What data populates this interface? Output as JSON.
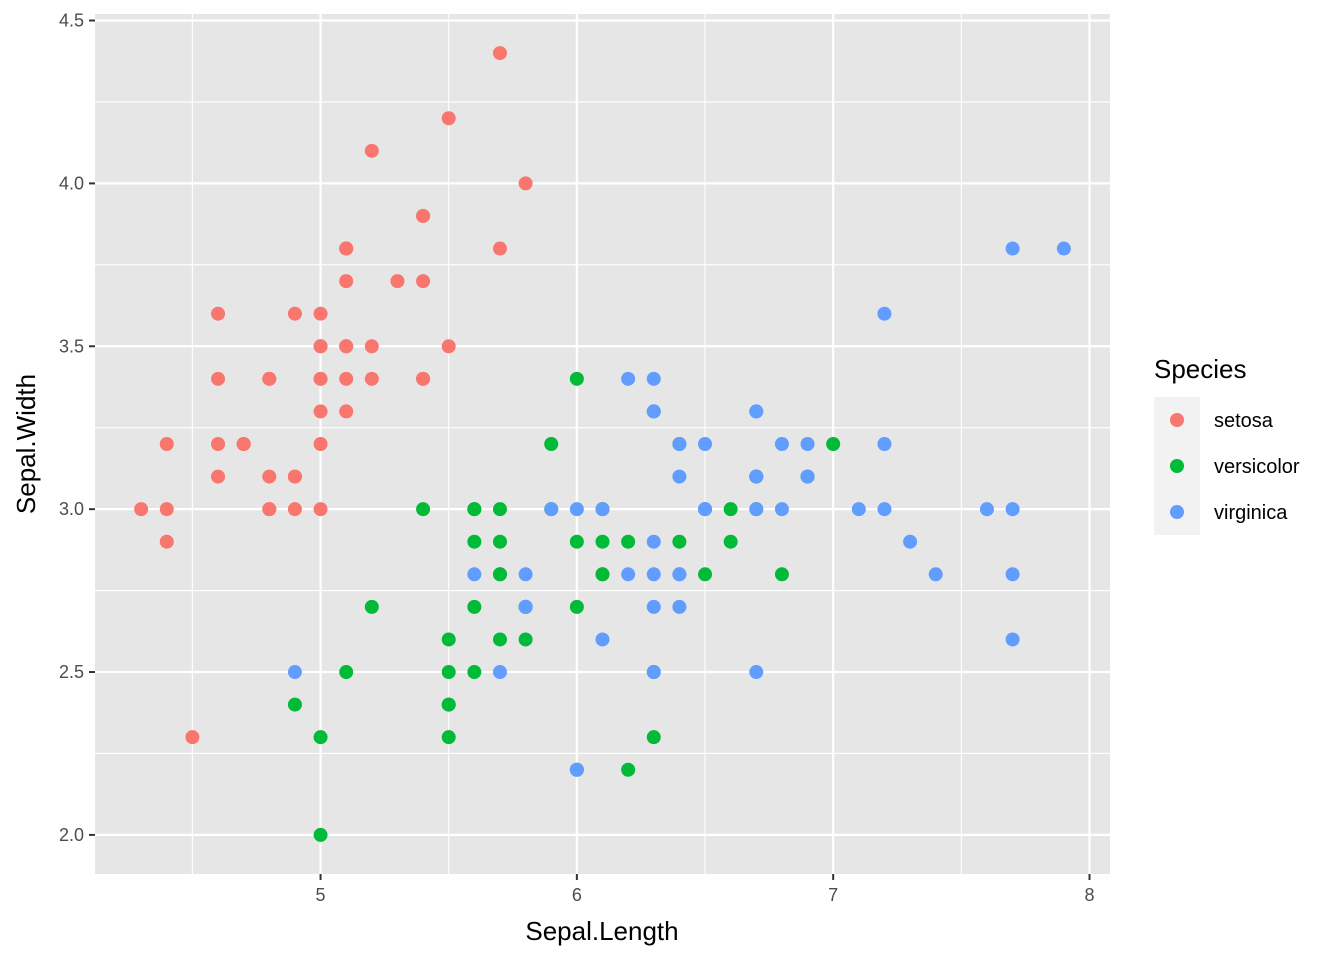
{
  "chart_data": {
    "type": "scatter",
    "xlabel": "Sepal.Length",
    "ylabel": "Sepal.Width",
    "xlim": [
      4.12,
      8.08
    ],
    "ylim": [
      1.88,
      4.52
    ],
    "x_ticks": [
      "5",
      "6",
      "7",
      "8"
    ],
    "x_tick_values": [
      5,
      6,
      7,
      8
    ],
    "x_minor_values": [
      4.5,
      5.5,
      6.5,
      7.5
    ],
    "y_ticks": [
      "2.0",
      "2.5",
      "3.0",
      "3.5",
      "4.0",
      "4.5"
    ],
    "y_tick_values": [
      2.0,
      2.5,
      3.0,
      3.5,
      4.0,
      4.5
    ],
    "y_minor_values": [
      2.25,
      2.75,
      3.25,
      3.75,
      4.25
    ],
    "grid": true,
    "panel_background": "#e6e6e6",
    "legend": {
      "title": "Species",
      "position": "right",
      "entries": [
        "setosa",
        "versicolor",
        "virginica"
      ]
    },
    "series": [
      {
        "name": "setosa",
        "color": "#F8766D",
        "points": [
          [
            5.1,
            3.5
          ],
          [
            4.9,
            3.0
          ],
          [
            4.7,
            3.2
          ],
          [
            4.6,
            3.1
          ],
          [
            5.0,
            3.6
          ],
          [
            5.4,
            3.9
          ],
          [
            4.6,
            3.4
          ],
          [
            5.0,
            3.4
          ],
          [
            4.4,
            2.9
          ],
          [
            4.9,
            3.1
          ],
          [
            5.4,
            3.7
          ],
          [
            4.8,
            3.4
          ],
          [
            4.8,
            3.0
          ],
          [
            4.3,
            3.0
          ],
          [
            5.8,
            4.0
          ],
          [
            5.7,
            4.4
          ],
          [
            5.4,
            3.9
          ],
          [
            5.1,
            3.5
          ],
          [
            5.7,
            3.8
          ],
          [
            5.1,
            3.8
          ],
          [
            5.4,
            3.4
          ],
          [
            5.1,
            3.7
          ],
          [
            4.6,
            3.6
          ],
          [
            5.1,
            3.3
          ],
          [
            4.8,
            3.4
          ],
          [
            5.0,
            3.0
          ],
          [
            5.0,
            3.4
          ],
          [
            5.2,
            3.5
          ],
          [
            5.2,
            3.4
          ],
          [
            4.7,
            3.2
          ],
          [
            4.8,
            3.1
          ],
          [
            5.4,
            3.4
          ],
          [
            5.2,
            4.1
          ],
          [
            5.5,
            4.2
          ],
          [
            4.9,
            3.1
          ],
          [
            5.0,
            3.2
          ],
          [
            5.5,
            3.5
          ],
          [
            4.9,
            3.6
          ],
          [
            4.4,
            3.0
          ],
          [
            5.1,
            3.4
          ],
          [
            5.0,
            3.5
          ],
          [
            4.5,
            2.3
          ],
          [
            4.4,
            3.2
          ],
          [
            5.0,
            3.5
          ],
          [
            5.1,
            3.8
          ],
          [
            4.8,
            3.0
          ],
          [
            5.1,
            3.8
          ],
          [
            4.6,
            3.2
          ],
          [
            5.3,
            3.7
          ],
          [
            5.0,
            3.3
          ]
        ]
      },
      {
        "name": "versicolor",
        "color": "#00BA38",
        "points": [
          [
            7.0,
            3.2
          ],
          [
            6.4,
            3.2
          ],
          [
            6.9,
            3.1
          ],
          [
            5.5,
            2.3
          ],
          [
            6.5,
            2.8
          ],
          [
            5.7,
            2.8
          ],
          [
            6.3,
            3.3
          ],
          [
            4.9,
            2.4
          ],
          [
            6.6,
            2.9
          ],
          [
            5.2,
            2.7
          ],
          [
            5.0,
            2.0
          ],
          [
            5.9,
            3.0
          ],
          [
            6.0,
            2.2
          ],
          [
            6.1,
            2.9
          ],
          [
            5.6,
            2.9
          ],
          [
            6.7,
            3.1
          ],
          [
            5.6,
            3.0
          ],
          [
            5.8,
            2.7
          ],
          [
            6.2,
            2.2
          ],
          [
            5.6,
            2.5
          ],
          [
            5.9,
            3.2
          ],
          [
            6.1,
            2.8
          ],
          [
            6.3,
            2.5
          ],
          [
            6.1,
            2.8
          ],
          [
            6.4,
            2.9
          ],
          [
            6.6,
            3.0
          ],
          [
            6.8,
            2.8
          ],
          [
            6.7,
            3.0
          ],
          [
            6.0,
            2.9
          ],
          [
            5.7,
            2.6
          ],
          [
            5.5,
            2.4
          ],
          [
            5.5,
            2.4
          ],
          [
            5.8,
            2.7
          ],
          [
            6.0,
            2.7
          ],
          [
            5.4,
            3.0
          ],
          [
            6.0,
            3.4
          ],
          [
            6.7,
            3.1
          ],
          [
            6.3,
            2.3
          ],
          [
            5.6,
            3.0
          ],
          [
            5.5,
            2.5
          ],
          [
            5.5,
            2.6
          ],
          [
            6.1,
            3.0
          ],
          [
            5.8,
            2.6
          ],
          [
            5.0,
            2.3
          ],
          [
            5.6,
            2.7
          ],
          [
            5.7,
            3.0
          ],
          [
            5.7,
            2.9
          ],
          [
            6.2,
            2.9
          ],
          [
            5.1,
            2.5
          ],
          [
            5.7,
            2.8
          ]
        ]
      },
      {
        "name": "virginica",
        "color": "#619CFF",
        "points": [
          [
            6.3,
            3.3
          ],
          [
            5.8,
            2.7
          ],
          [
            7.1,
            3.0
          ],
          [
            6.3,
            2.9
          ],
          [
            6.5,
            3.0
          ],
          [
            7.6,
            3.0
          ],
          [
            4.9,
            2.5
          ],
          [
            7.3,
            2.9
          ],
          [
            6.7,
            2.5
          ],
          [
            7.2,
            3.6
          ],
          [
            6.5,
            3.2
          ],
          [
            6.4,
            2.7
          ],
          [
            6.8,
            3.0
          ],
          [
            5.7,
            2.5
          ],
          [
            5.8,
            2.8
          ],
          [
            6.4,
            3.2
          ],
          [
            6.5,
            3.0
          ],
          [
            7.7,
            3.8
          ],
          [
            7.7,
            2.6
          ],
          [
            6.0,
            2.2
          ],
          [
            6.9,
            3.2
          ],
          [
            5.6,
            2.8
          ],
          [
            7.7,
            2.8
          ],
          [
            6.3,
            2.7
          ],
          [
            6.7,
            3.3
          ],
          [
            7.2,
            3.2
          ],
          [
            6.2,
            2.8
          ],
          [
            6.1,
            3.0
          ],
          [
            6.4,
            2.8
          ],
          [
            7.2,
            3.0
          ],
          [
            7.4,
            2.8
          ],
          [
            7.9,
            3.8
          ],
          [
            6.4,
            2.8
          ],
          [
            6.3,
            2.8
          ],
          [
            6.1,
            2.6
          ],
          [
            7.7,
            3.0
          ],
          [
            6.3,
            3.4
          ],
          [
            6.4,
            3.1
          ],
          [
            6.0,
            3.0
          ],
          [
            6.9,
            3.1
          ],
          [
            6.7,
            3.1
          ],
          [
            6.9,
            3.1
          ],
          [
            5.8,
            2.7
          ],
          [
            6.8,
            3.2
          ],
          [
            6.7,
            3.3
          ],
          [
            6.7,
            3.0
          ],
          [
            6.3,
            2.5
          ],
          [
            6.5,
            3.0
          ],
          [
            6.2,
            3.4
          ],
          [
            5.9,
            3.0
          ]
        ]
      }
    ]
  }
}
